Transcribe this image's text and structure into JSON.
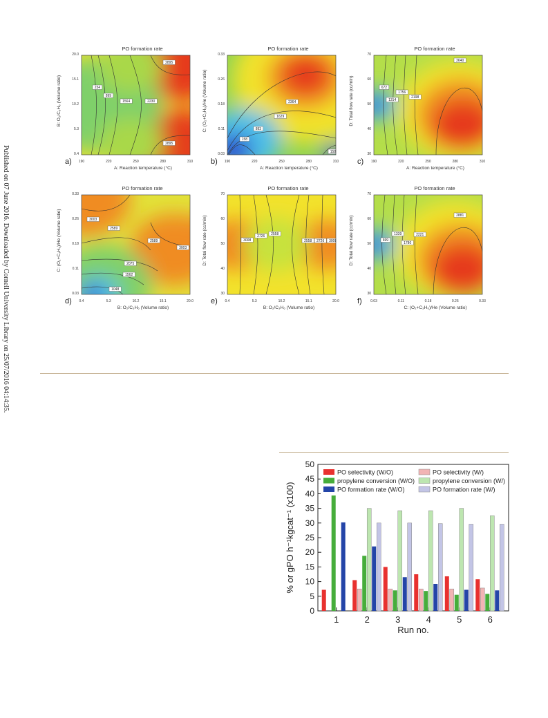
{
  "side_note": "Published on 07 June 2016. Downloaded by Cornell University Library on 25/07/2016 04:14:35.",
  "panels": [
    {
      "letter": "a)",
      "title": "PO formation rate",
      "xlabel": "A: Reaction temperature (°C)",
      "ylabel": "B: O₂/C₃H₆ (Volume ratio)",
      "xticks": [
        "190",
        "220",
        "250",
        "280",
        "310"
      ],
      "yticks": [
        "20.0",
        "15.1",
        "10.2",
        "5.3",
        "0.4"
      ],
      "contour_labels": [
        "234",
        "899",
        "1564",
        "2230",
        "2895",
        "2895"
      ]
    },
    {
      "letter": "b)",
      "title": "PO formation rate",
      "xlabel": "A: Reaction temperature (°C)",
      "ylabel": "C: (O₂+C₃H₆)/He (Volume ratio)",
      "xticks": [
        "190",
        "220",
        "250",
        "280",
        "310"
      ],
      "yticks": [
        "0.33",
        "0.26",
        "0.18",
        "0.11",
        "0.03"
      ],
      "contour_labels": [
        "2364",
        "1629",
        "893",
        "158",
        "158"
      ]
    },
    {
      "letter": "c)",
      "title": "PO formation rate",
      "xlabel": "A: Reaction temperature (°C)",
      "ylabel": "D: Total flow rate (cc/min)",
      "xticks": [
        "190",
        "220",
        "250",
        "280",
        "310"
      ],
      "yticks": [
        "70",
        "60",
        "50",
        "40",
        "30"
      ],
      "contour_labels": [
        "2640",
        "672",
        "1314",
        "1756",
        "2198"
      ]
    },
    {
      "letter": "d)",
      "title": "PO formation rate",
      "xlabel": "B: O₂/C₃H₆ (Volume ratio)",
      "ylabel": "C: (O₂+C₃H₆)/He (Volume ratio)",
      "xticks": [
        "0.4",
        "5.3",
        "10.2",
        "15.1",
        "20.0"
      ],
      "yticks": [
        "0.33",
        "0.26",
        "0.18",
        "0.11",
        "0.03"
      ],
      "contour_labels": [
        "3003",
        "2589",
        "2589",
        "3003",
        "2075",
        "1562",
        "1048"
      ]
    },
    {
      "letter": "e)",
      "title": "PO formation rate",
      "xlabel": "B: O₂/C₃H₆ (Volume ratio)",
      "ylabel": "D: Total flow rate (cc/min)",
      "xticks": [
        "0.4",
        "5.3",
        "10.2",
        "15.1",
        "20.0"
      ],
      "yticks": [
        "70",
        "60",
        "50",
        "40",
        "30"
      ],
      "contour_labels": [
        "3008",
        "2726",
        "2558",
        "2558",
        "2726",
        "3008"
      ]
    },
    {
      "letter": "f)",
      "title": "PO formation rate",
      "xlabel": "C: (O₂+C₃H₆)/He (Volume ratio)",
      "ylabel": "D: Total flow rate (cc/min)",
      "xticks": [
        "0.03",
        "0.11",
        "0.18",
        "0.26",
        "0.33"
      ],
      "yticks": [
        "70",
        "60",
        "50",
        "40",
        "30"
      ],
      "contour_labels": [
        "2881",
        "699",
        "1339",
        "1780",
        "2221"
      ]
    }
  ],
  "colors": {
    "rule": "#c9b79a"
  },
  "chart_data": {
    "type": "bar",
    "categories": [
      "1",
      "2",
      "3",
      "4",
      "5",
      "6"
    ],
    "xlabel": "Run no.",
    "ylabel": "% or gPO h⁻¹kgcat⁻¹ (x100)",
    "ylim": [
      0,
      50
    ],
    "yticks": [
      0,
      5,
      10,
      15,
      20,
      25,
      30,
      35,
      40,
      45,
      50
    ],
    "legend_position": "top",
    "series": [
      {
        "name": "PO selectivity (W/O)",
        "color": "#e8312f",
        "fill": "solid",
        "values": [
          7.2,
          10.5,
          15,
          12.5,
          11.8,
          10.8
        ]
      },
      {
        "name": "PO selectivity (W/)",
        "color": "#f2b4b4",
        "fill": "light",
        "values": [
          null,
          7.5,
          7.5,
          7.5,
          7.5,
          7.8
        ]
      },
      {
        "name": "propylene conversion (W/O)",
        "color": "#46ad3b",
        "fill": "solid",
        "values": [
          40.2,
          18.8,
          7,
          6.8,
          5.5,
          5.8
        ]
      },
      {
        "name": "propylene conversion (W/)",
        "color": "#bde6b0",
        "fill": "light",
        "values": [
          null,
          35,
          34.2,
          34.2,
          35,
          32.5
        ]
      },
      {
        "name": "PO formation rate (W/O)",
        "color": "#2445a8",
        "fill": "solid",
        "values": [
          30.2,
          22,
          11.5,
          9.2,
          7.2,
          7
        ]
      },
      {
        "name": "PO formation rate (W/)",
        "color": "#c3c5e6",
        "fill": "light",
        "values": [
          null,
          30,
          30,
          29.8,
          29.6,
          29.6
        ]
      }
    ]
  }
}
